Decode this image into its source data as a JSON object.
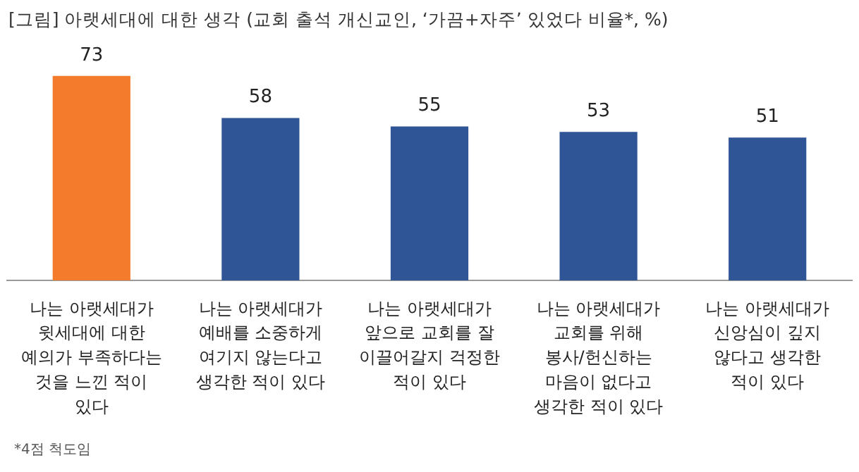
{
  "chart_data": {
    "type": "bar",
    "title": "[그림] 아랫세대에 대한 생각 (교회 출석 개신교인, ‘가끔+자주’ 있었다 비율*, %)",
    "categories": [
      "나는 아랫세대가 윗세대에 대한 예의가 부족하다는 것을 느낀 적이 있다",
      "나는 아랫세대가 예배를 소중하게 여기지 않는다고 생각한 적이 있다",
      "나는 아랫세대가 앞으로 교회를 잘 이끌어갈지 걱정한 적이 있다",
      "나는 아랫세대가 교회를 위해 봉사/헌신하는 마음이 없다고 생각한 적이 있다",
      "나는 아랫세대가 신앙심이 깊지 않다고 생각한 적이 있다"
    ],
    "values": [
      73,
      58,
      55,
      53,
      51
    ],
    "colors": [
      "#f47b2c",
      "#2f5597",
      "#2f5597",
      "#2f5597",
      "#2f5597"
    ],
    "data_labels": true,
    "grid": false,
    "legend": false,
    "annotations": [
      "*4점 척도임"
    ]
  }
}
